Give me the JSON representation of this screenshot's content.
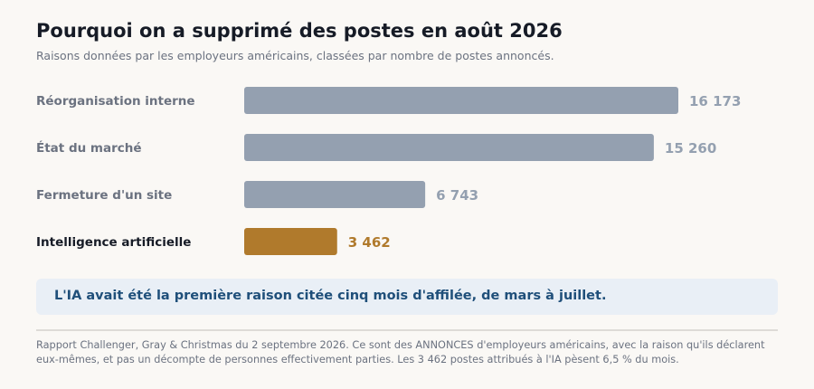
{
  "title": "Pourquoi on a supprimé des postes en août 2026",
  "subtitle": "Raisons données par les employeurs américains, classées par nombre de postes annoncés.",
  "chart_data": {
    "type": "bar",
    "orientation": "horizontal",
    "categories": [
      "Réorganisation interne",
      "État du marché",
      "Fermeture d'un site",
      "Intelligence artificielle"
    ],
    "values": [
      16173,
      15260,
      6743,
      3462
    ],
    "value_labels": [
      "16 173",
      "15 260",
      "6 743",
      "3 462"
    ],
    "highlight_index": 3,
    "colors": {
      "default": "#94a0b0",
      "highlight": "#b07a2c",
      "label_default": "#6b7280",
      "label_highlight": "#161b26"
    },
    "grid": false
  },
  "callout": "L'IA avait été la première raison citée cinq mois d'affilée, de mars à juillet.",
  "source": "Rapport Challenger, Gray & Christmas du 2 septembre 2026. Ce sont des ANNONCES d'employeurs américains, avec la raison qu'ils déclarent eux-mêmes, et pas un décompte de personnes effectivement parties. Les 3 462 postes attribués à l'IA pèsent 6,5 % du mois."
}
